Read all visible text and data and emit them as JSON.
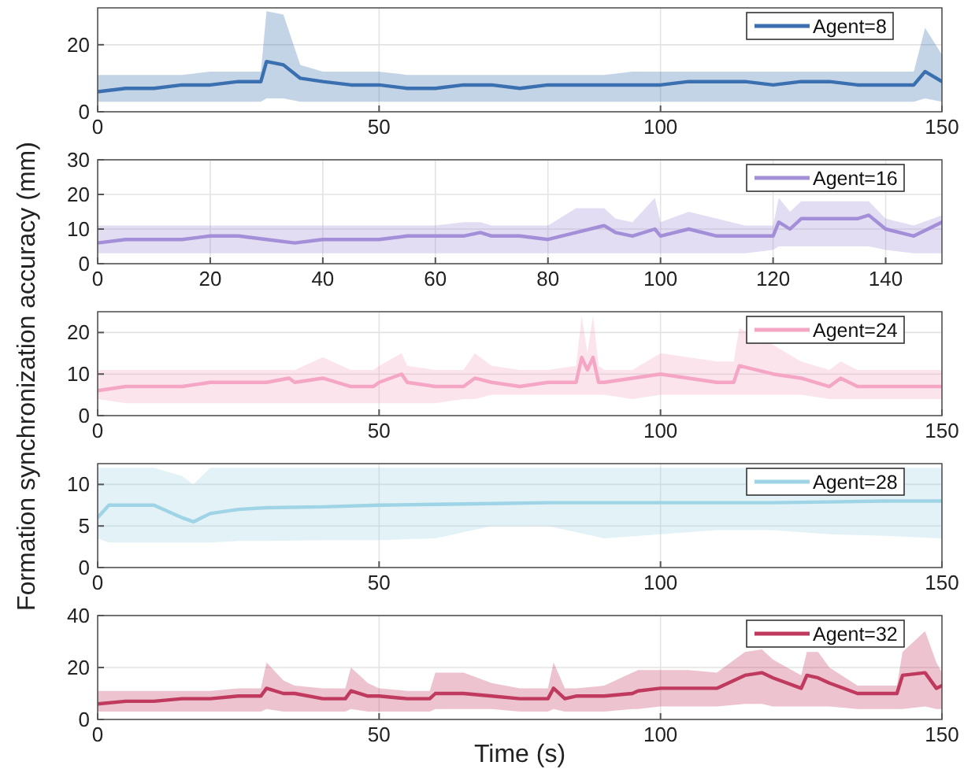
{
  "chart_data": [
    {
      "type": "line",
      "x": [
        0,
        5,
        10,
        15,
        20,
        25,
        29,
        30,
        33,
        36,
        40,
        45,
        50,
        55,
        60,
        65,
        70,
        75,
        80,
        85,
        90,
        95,
        100,
        105,
        110,
        115,
        120,
        125,
        130,
        135,
        140,
        145,
        147,
        150
      ],
      "xlim": [
        0,
        150
      ],
      "xticks": [
        0,
        50,
        100,
        150
      ],
      "ylim": [
        0,
        31
      ],
      "yticks": [
        0,
        20
      ],
      "grid": true,
      "legend": "top right",
      "series": [
        {
          "name": "Agent=8",
          "color": "#3a6fb0",
          "values": [
            6,
            7,
            7,
            8,
            8,
            9,
            9,
            15,
            14,
            10,
            9,
            8,
            8,
            7,
            7,
            8,
            8,
            7,
            8,
            8,
            8,
            8,
            8,
            9,
            9,
            9,
            8,
            9,
            9,
            8,
            8,
            8,
            12,
            9
          ],
          "lower": [
            3,
            3,
            3,
            3,
            3,
            3,
            3,
            4,
            4,
            3,
            3,
            3,
            3,
            3,
            3,
            3,
            3,
            3,
            3,
            3,
            3,
            3,
            3,
            3,
            3,
            3,
            3,
            3,
            3,
            3,
            3,
            3,
            4,
            3
          ],
          "upper": [
            11,
            11,
            11,
            11,
            12,
            12,
            12,
            30,
            29,
            14,
            12,
            12,
            12,
            11,
            11,
            11,
            11,
            11,
            11,
            11,
            11,
            12,
            12,
            12,
            12,
            12,
            12,
            12,
            12,
            12,
            12,
            12,
            25,
            17
          ]
        }
      ]
    },
    {
      "type": "line",
      "x": [
        0,
        5,
        10,
        15,
        20,
        25,
        30,
        35,
        40,
        45,
        50,
        55,
        60,
        65,
        68,
        70,
        75,
        80,
        85,
        90,
        92,
        95,
        99,
        100,
        105,
        110,
        115,
        120,
        121,
        123,
        125,
        130,
        135,
        137,
        140,
        145,
        150
      ],
      "xlim": [
        0,
        150
      ],
      "xticks": [
        0,
        20,
        40,
        60,
        80,
        100,
        120,
        140
      ],
      "ylim": [
        0,
        30
      ],
      "yticks": [
        0,
        10,
        20,
        30
      ],
      "grid": true,
      "legend": "top right",
      "series": [
        {
          "name": "Agent=16",
          "color": "#a38fd8",
          "values": [
            6,
            7,
            7,
            7,
            8,
            8,
            7,
            6,
            7,
            7,
            7,
            8,
            8,
            8,
            9,
            8,
            8,
            7,
            9,
            11,
            9,
            8,
            10,
            8,
            10,
            8,
            8,
            8,
            12,
            10,
            13,
            13,
            13,
            14,
            10,
            8,
            12
          ],
          "lower": [
            3,
            3,
            3,
            3,
            3,
            3,
            3,
            3,
            3,
            3,
            3,
            3,
            3,
            3,
            3,
            3,
            3,
            3,
            3,
            3,
            3,
            3,
            3,
            3,
            3,
            3,
            3,
            4,
            5,
            5,
            5,
            5,
            5,
            5,
            4,
            3,
            3
          ],
          "upper": [
            11,
            11,
            11,
            11,
            11,
            11,
            11,
            11,
            11,
            11,
            11,
            11,
            11,
            12,
            12,
            11,
            11,
            11,
            16,
            16,
            13,
            12,
            19,
            12,
            15,
            13,
            11,
            11,
            19,
            15,
            18,
            18,
            18,
            18,
            13,
            11,
            14
          ]
        }
      ]
    },
    {
      "type": "line",
      "ylabel": "Formation synchronization accuracy (mm)",
      "x": [
        0,
        5,
        10,
        15,
        20,
        22,
        30,
        34,
        35,
        40,
        45,
        49,
        50,
        54,
        55,
        60,
        65,
        67,
        70,
        75,
        80,
        85,
        86,
        87,
        88,
        89,
        90,
        95,
        100,
        105,
        110,
        113,
        114,
        120,
        125,
        130,
        132,
        135,
        140,
        145,
        150
      ],
      "xlim": [
        0,
        150
      ],
      "xticks": [
        0,
        50,
        100,
        150
      ],
      "ylim": [
        0,
        25
      ],
      "yticks": [
        0,
        10,
        20
      ],
      "grid": true,
      "legend": "top right",
      "series": [
        {
          "name": "Agent=24",
          "color": "#f4a6c4",
          "values": [
            6,
            7,
            7,
            7,
            8,
            8,
            8,
            9,
            8,
            9,
            7,
            7,
            8,
            10,
            8,
            7,
            7,
            9,
            8,
            7,
            8,
            8,
            14,
            11,
            14,
            8,
            8,
            9,
            10,
            9,
            8,
            8,
            12,
            10,
            9,
            7,
            9,
            7,
            7,
            7,
            7
          ],
          "lower": [
            4,
            3,
            3,
            3,
            3,
            3,
            3,
            3,
            3,
            3,
            3,
            3,
            3,
            3,
            3,
            3,
            4,
            4,
            5,
            5,
            5,
            5,
            5,
            5,
            5,
            5,
            5,
            4,
            5,
            5,
            5,
            5,
            5,
            5,
            5,
            4,
            4,
            4,
            4,
            4,
            4
          ],
          "upper": [
            11,
            11,
            11,
            11,
            11,
            11,
            11,
            11,
            11,
            14,
            11,
            11,
            12,
            15,
            12,
            11,
            11,
            15,
            12,
            11,
            11,
            12,
            24,
            15,
            24,
            12,
            11,
            11,
            15,
            14,
            13,
            13,
            21,
            17,
            13,
            11,
            13,
            11,
            11,
            11,
            11
          ]
        }
      ]
    },
    {
      "type": "line",
      "x": [
        0,
        2,
        5,
        10,
        15,
        17,
        20,
        25,
        30,
        40,
        50,
        60,
        70,
        80,
        90,
        100,
        110,
        120,
        130,
        140,
        150
      ],
      "xlim": [
        0,
        150
      ],
      "xticks": [
        0,
        50,
        100,
        150
      ],
      "ylim": [
        0,
        12.5
      ],
      "yticks": [
        0,
        5,
        10
      ],
      "grid": true,
      "legend": "top right",
      "series": [
        {
          "name": "Agent=28",
          "color": "#9fd3e6",
          "values": [
            6,
            7.5,
            7.5,
            7.5,
            6,
            5.5,
            6.5,
            7,
            7.2,
            7.3,
            7.5,
            7.6,
            7.7,
            7.8,
            7.8,
            7.8,
            7.8,
            7.8,
            7.9,
            8,
            8
          ],
          "lower": [
            3.5,
            3,
            3,
            3,
            3,
            3,
            3,
            3.2,
            3.2,
            3.3,
            3.3,
            3.5,
            5,
            5,
            3.5,
            4,
            4.5,
            4.5,
            4,
            3.8,
            3.5
          ],
          "upper": [
            12,
            12,
            12,
            12,
            11,
            10,
            12,
            12,
            12,
            12,
            12,
            12,
            12,
            12,
            12,
            12,
            12,
            12,
            12,
            12,
            12
          ]
        }
      ]
    },
    {
      "type": "line",
      "xlabel": "Time (s)",
      "x": [
        0,
        5,
        10,
        15,
        20,
        25,
        29,
        30,
        33,
        35,
        40,
        44,
        45,
        48,
        50,
        55,
        59,
        60,
        65,
        70,
        75,
        80,
        81,
        83,
        85,
        90,
        95,
        96,
        100,
        105,
        110,
        115,
        118,
        120,
        125,
        126,
        128,
        130,
        135,
        140,
        142,
        143,
        147,
        149,
        150
      ],
      "xlim": [
        0,
        150
      ],
      "xticks": [
        0,
        50,
        100,
        150
      ],
      "ylim": [
        0,
        40
      ],
      "yticks": [
        0,
        20,
        40
      ],
      "grid": true,
      "legend": "top right",
      "series": [
        {
          "name": "Agent=32",
          "color": "#c0395e",
          "values": [
            6,
            7,
            7,
            8,
            8,
            9,
            9,
            12,
            10,
            10,
            8,
            8,
            11,
            9,
            9,
            8,
            8,
            10,
            10,
            9,
            8,
            8,
            12,
            8,
            9,
            9,
            10,
            11,
            12,
            12,
            12,
            17,
            18,
            16,
            12,
            17,
            16,
            14,
            10,
            10,
            10,
            17,
            18,
            12,
            13
          ],
          "lower": [
            3,
            3,
            3,
            3,
            3,
            3,
            3,
            4,
            3,
            3,
            3,
            3,
            4,
            3,
            3,
            3,
            3,
            4,
            4,
            4,
            3,
            3,
            4,
            3,
            3,
            3,
            4,
            4,
            5,
            5,
            5,
            6,
            6,
            5,
            5,
            5,
            5,
            5,
            4,
            4,
            4,
            4,
            5,
            4,
            4
          ],
          "upper": [
            11,
            11,
            11,
            11,
            11,
            12,
            12,
            22,
            15,
            13,
            12,
            12,
            20,
            14,
            12,
            11,
            11,
            18,
            18,
            14,
            12,
            12,
            22,
            12,
            12,
            13,
            18,
            19,
            19,
            19,
            18,
            26,
            27,
            23,
            17,
            26,
            26,
            20,
            13,
            13,
            13,
            26,
            34,
            22,
            18
          ]
        }
      ]
    }
  ]
}
